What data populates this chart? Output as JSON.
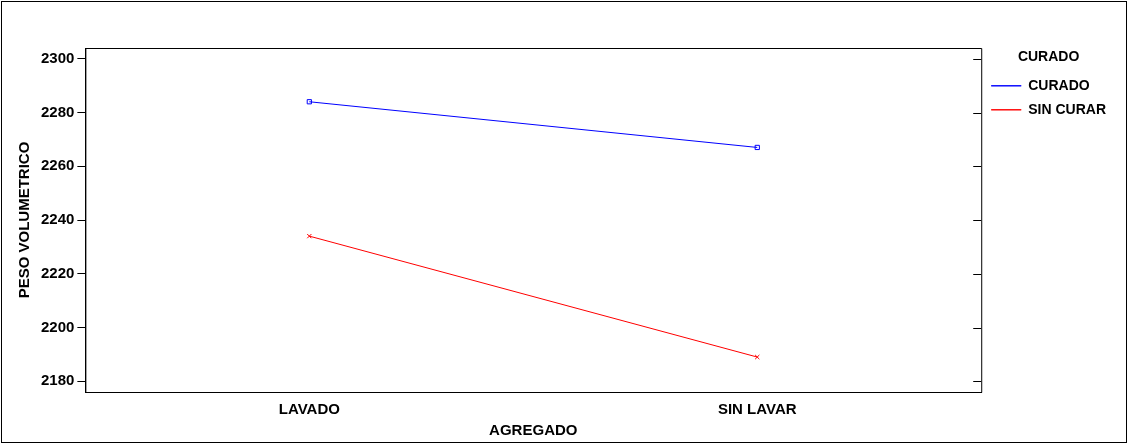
{
  "chart_data": {
    "type": "line",
    "xlabel": "AGREGADO",
    "ylabel": "PESO VOLUMETRICO",
    "legend_title": "CURADO",
    "legend": "top right",
    "grid": false,
    "categories": [
      "LAVADO",
      "SIN LAVAR"
    ],
    "ylim": [
      2176,
      2304
    ],
    "yticks": [
      2180,
      2200,
      2220,
      2240,
      2260,
      2280,
      2300
    ],
    "series": [
      {
        "name": "CURADO",
        "color": "#0000ff",
        "marker": "square",
        "values": [
          2284,
          2267
        ]
      },
      {
        "name": "SIN CURAR",
        "color": "#ff0000",
        "marker": "cross",
        "values": [
          2234,
          2189
        ]
      }
    ]
  }
}
